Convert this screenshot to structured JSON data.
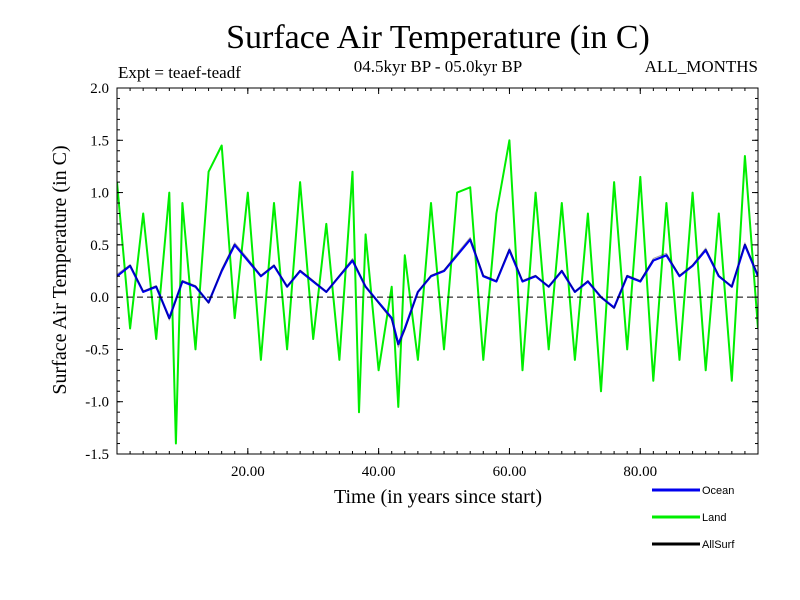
{
  "chart_data": {
    "type": "line",
    "title": "Surface Air Temperature (in C)",
    "subtitle_left": "Expt = teaef-teadf",
    "subtitle_center": "04.5kyr BP - 05.0kyr BP",
    "subtitle_right": "ALL_MONTHS",
    "xlabel": "Time (in years since start)",
    "ylabel": "Surface Air Temperature (in C)",
    "xlim": [
      0,
      98
    ],
    "ylim": [
      -1.5,
      2.0
    ],
    "x_ticks": [
      20,
      40,
      60,
      80
    ],
    "x_tick_labels": [
      "20.00",
      "40.00",
      "60.00",
      "80.00"
    ],
    "y_ticks": [
      -1.5,
      -1.0,
      -0.5,
      0.0,
      0.5,
      1.0,
      1.5,
      2.0
    ],
    "y_tick_labels": [
      "-1.5",
      "-1.0",
      "-0.5",
      "0.0",
      "0.5",
      "1.0",
      "1.5",
      "2.0"
    ],
    "zero_line": true,
    "series": [
      {
        "name": "Land",
        "color": "#00ee00",
        "x": [
          0,
          2,
          4,
          6,
          8,
          9,
          10,
          12,
          14,
          16,
          18,
          20,
          22,
          24,
          26,
          28,
          30,
          32,
          34,
          36,
          37,
          38,
          40,
          42,
          43,
          44,
          46,
          48,
          50,
          52,
          54,
          56,
          58,
          60,
          62,
          64,
          66,
          68,
          70,
          72,
          74,
          76,
          78,
          80,
          82,
          84,
          86,
          88,
          90,
          92,
          94,
          96,
          98
        ],
        "values": [
          1.1,
          -0.3,
          0.8,
          -0.4,
          1.0,
          -1.4,
          0.9,
          -0.5,
          1.2,
          1.45,
          -0.2,
          1.0,
          -0.6,
          0.9,
          -0.5,
          1.1,
          -0.4,
          0.7,
          -0.6,
          1.2,
          -1.1,
          0.6,
          -0.7,
          0.1,
          -1.05,
          0.4,
          -0.6,
          0.9,
          -0.5,
          1.0,
          1.05,
          -0.6,
          0.8,
          1.5,
          -0.7,
          1.0,
          -0.5,
          0.9,
          -0.6,
          0.8,
          -0.9,
          1.1,
          -0.5,
          1.15,
          -0.8,
          0.9,
          -0.6,
          1.0,
          -0.7,
          0.8,
          -0.8,
          1.35,
          -0.3
        ]
      },
      {
        "name": "Ocean",
        "color": "#0000ee",
        "x": [
          0,
          2,
          4,
          6,
          8,
          10,
          12,
          14,
          16,
          18,
          20,
          22,
          24,
          26,
          28,
          30,
          32,
          34,
          36,
          38,
          40,
          42,
          43,
          44,
          46,
          48,
          50,
          52,
          54,
          56,
          58,
          60,
          62,
          64,
          66,
          68,
          70,
          72,
          74,
          76,
          78,
          80,
          82,
          84,
          86,
          88,
          90,
          92,
          94,
          96,
          98
        ],
        "values": [
          0.2,
          0.3,
          0.05,
          0.1,
          -0.2,
          0.15,
          0.1,
          -0.05,
          0.25,
          0.5,
          0.35,
          0.2,
          0.3,
          0.1,
          0.25,
          0.15,
          0.05,
          0.2,
          0.35,
          0.1,
          -0.05,
          -0.2,
          -0.45,
          -0.3,
          0.05,
          0.2,
          0.25,
          0.4,
          0.55,
          0.2,
          0.15,
          0.45,
          0.15,
          0.2,
          0.1,
          0.25,
          0.05,
          0.15,
          0.0,
          -0.1,
          0.2,
          0.15,
          0.35,
          0.4,
          0.2,
          0.3,
          0.45,
          0.2,
          0.1,
          0.5,
          0.2
        ]
      },
      {
        "name": "AllSurf",
        "color": "#000000",
        "x": [
          0,
          2,
          4,
          6,
          8,
          10,
          12,
          14,
          16,
          18,
          20,
          22,
          24,
          26,
          28,
          30,
          32,
          34,
          36,
          38,
          40,
          42,
          43,
          44,
          46,
          48,
          50,
          52,
          54,
          56,
          58,
          60,
          62,
          64,
          66,
          68,
          70,
          72,
          74,
          76,
          78,
          80,
          82,
          84,
          86,
          88,
          90,
          92,
          94,
          96,
          98
        ],
        "values": [
          0.22,
          0.31,
          0.06,
          0.11,
          -0.22,
          0.16,
          0.11,
          -0.06,
          0.27,
          0.52,
          0.37,
          0.21,
          0.31,
          0.1,
          0.26,
          0.16,
          0.05,
          0.21,
          0.37,
          0.1,
          -0.06,
          -0.22,
          -0.48,
          -0.32,
          0.05,
          0.21,
          0.26,
          0.42,
          0.57,
          0.21,
          0.16,
          0.47,
          0.16,
          0.21,
          0.1,
          0.26,
          0.05,
          0.16,
          0.0,
          -0.11,
          0.21,
          0.16,
          0.37,
          0.42,
          0.21,
          0.31,
          0.47,
          0.21,
          0.1,
          0.52,
          0.21
        ]
      }
    ],
    "legend": [
      {
        "label": "Ocean",
        "color": "#0000ee"
      },
      {
        "label": "Land",
        "color": "#00ee00"
      },
      {
        "label": "AllSurf",
        "color": "#000000"
      }
    ],
    "legend_position": "bottom-right"
  }
}
